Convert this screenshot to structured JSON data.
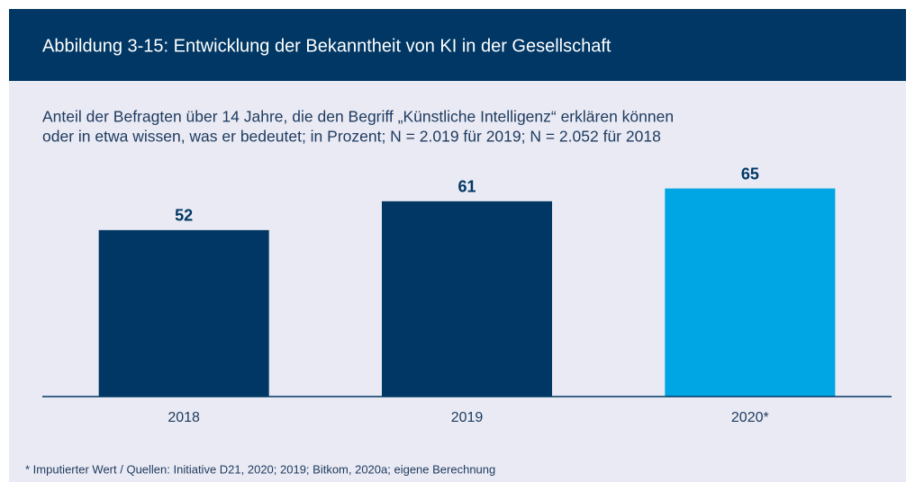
{
  "chart_data": {
    "type": "bar",
    "title": "Abbildung 3-15: Entwicklung der Bekanntheit von KI in der Gesellschaft",
    "subtitle": [
      "Anteil der Befragten über 14 Jahre, die den Begriff „Künstliche Intelligenz“ erklären können",
      "oder in etwa wissen, was er bedeutet; in Prozent; N = 2.019 für 2019; N = 2.052 für 2018"
    ],
    "categories": [
      "2018",
      "2019",
      "2020*"
    ],
    "values": [
      52,
      61,
      65
    ],
    "colors": [
      "#003764",
      "#003764",
      "#00a5e3"
    ],
    "ylim": [
      0,
      100
    ],
    "footnote": "* Imputierter Wert / Quellen: Initiative D21, 2020; 2019; Bitkom, 2020a; eigene Berechnung"
  }
}
